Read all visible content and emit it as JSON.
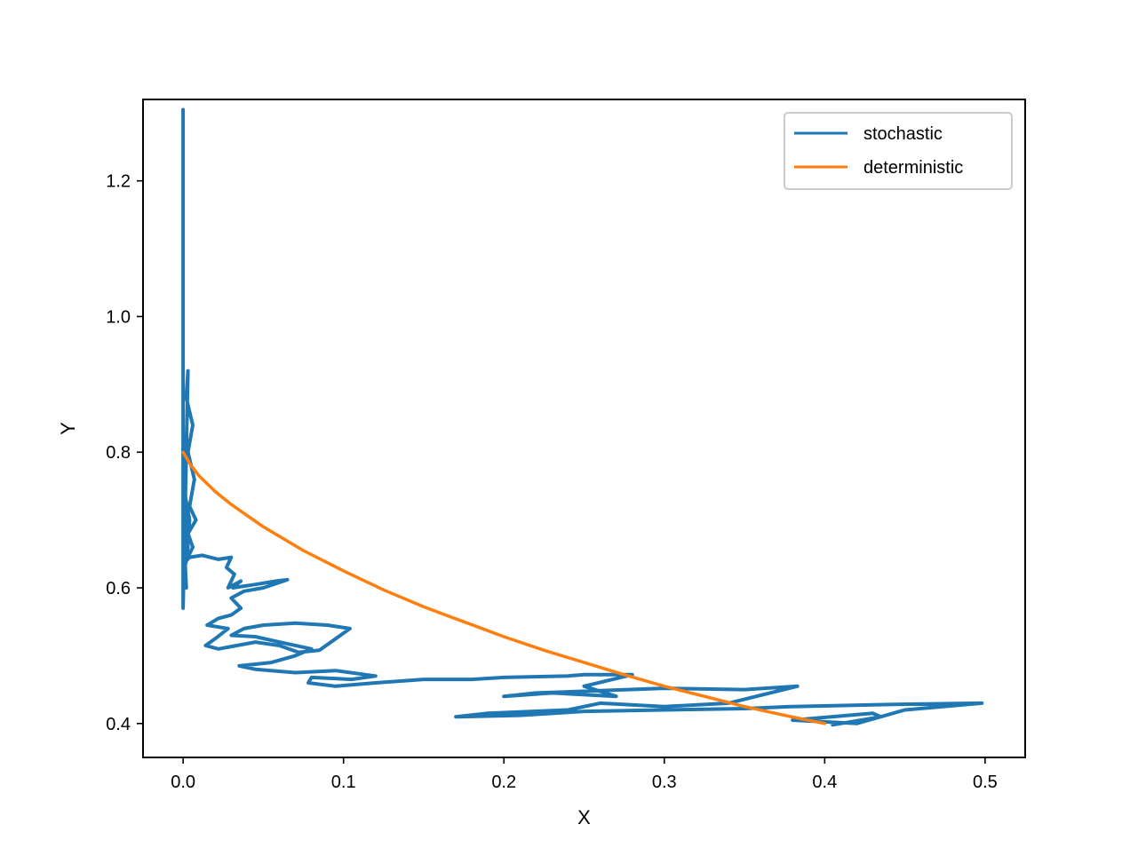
{
  "chart_data": {
    "type": "line",
    "title": "",
    "xlabel": "X",
    "ylabel": "Y",
    "xlim": [
      -0.025,
      0.525
    ],
    "ylim": [
      0.35,
      1.32
    ],
    "grid": false,
    "legend_position": "top-right",
    "xticks": [
      0.0,
      0.1,
      0.2,
      0.3,
      0.4,
      0.5
    ],
    "xtick_labels": [
      "0.0",
      "0.1",
      "0.2",
      "0.3",
      "0.4",
      "0.5"
    ],
    "yticks": [
      0.4,
      0.6,
      0.8,
      1.0,
      1.2
    ],
    "ytick_labels": [
      "0.4",
      "0.6",
      "0.8",
      "1.0",
      "1.2"
    ],
    "series": [
      {
        "name": "stochastic",
        "color": "#1f77b4",
        "x": [
          0.0,
          0.0,
          0.0,
          0.003,
          0.002,
          0.006,
          0.003,
          0.007,
          0.004,
          0.008,
          0.003,
          0.006,
          0.002,
          0.004,
          0.001,
          0.003,
          0.001,
          0.003,
          0.001,
          0.002,
          0.0,
          0.002,
          0.004,
          0.012,
          0.022,
          0.03,
          0.027,
          0.032,
          0.028,
          0.036,
          0.031,
          0.045,
          0.058,
          0.065,
          0.05,
          0.038,
          0.03,
          0.036,
          0.03,
          0.022,
          0.015,
          0.028,
          0.02,
          0.014,
          0.022,
          0.045,
          0.06,
          0.072,
          0.085,
          0.104,
          0.09,
          0.07,
          0.05,
          0.038,
          0.03,
          0.045,
          0.06,
          0.08,
          0.07,
          0.055,
          0.035,
          0.045,
          0.07,
          0.095,
          0.12,
          0.105,
          0.08,
          0.078,
          0.095,
          0.12,
          0.15,
          0.18,
          0.2,
          0.24,
          0.25,
          0.28,
          0.25,
          0.27,
          0.23,
          0.2,
          0.22,
          0.3,
          0.35,
          0.383,
          0.34,
          0.3,
          0.26,
          0.24,
          0.19,
          0.17,
          0.21,
          0.25,
          0.3,
          0.35,
          0.38,
          0.44,
          0.498,
          0.45,
          0.42,
          0.38,
          0.43,
          0.435,
          0.41,
          0.405
        ],
        "y": [
          0.57,
          1.305,
          0.57,
          0.92,
          0.88,
          0.84,
          0.8,
          0.76,
          0.72,
          0.7,
          0.68,
          0.66,
          0.64,
          0.7,
          0.74,
          0.66,
          0.63,
          0.71,
          0.65,
          0.6,
          0.62,
          0.64,
          0.645,
          0.648,
          0.642,
          0.645,
          0.63,
          0.62,
          0.6,
          0.61,
          0.6,
          0.605,
          0.61,
          0.612,
          0.6,
          0.595,
          0.585,
          0.57,
          0.56,
          0.555,
          0.545,
          0.54,
          0.525,
          0.515,
          0.51,
          0.52,
          0.515,
          0.505,
          0.508,
          0.54,
          0.545,
          0.548,
          0.545,
          0.54,
          0.53,
          0.528,
          0.52,
          0.51,
          0.5,
          0.49,
          0.485,
          0.48,
          0.475,
          0.478,
          0.47,
          0.465,
          0.468,
          0.46,
          0.455,
          0.46,
          0.465,
          0.465,
          0.468,
          0.47,
          0.472,
          0.472,
          0.455,
          0.44,
          0.445,
          0.44,
          0.445,
          0.452,
          0.45,
          0.455,
          0.43,
          0.425,
          0.43,
          0.42,
          0.415,
          0.41,
          0.412,
          0.418,
          0.42,
          0.422,
          0.425,
          0.428,
          0.43,
          0.42,
          0.4,
          0.405,
          0.415,
          0.41,
          0.4,
          0.398
        ]
      },
      {
        "name": "deterministic",
        "color": "#ff7f0e",
        "x": [
          0.0,
          0.005,
          0.01,
          0.02,
          0.03,
          0.05,
          0.075,
          0.1,
          0.125,
          0.15,
          0.175,
          0.2,
          0.225,
          0.25,
          0.275,
          0.3,
          0.325,
          0.35,
          0.375,
          0.4
        ],
        "y": [
          0.8,
          0.78,
          0.765,
          0.742,
          0.723,
          0.69,
          0.655,
          0.625,
          0.597,
          0.572,
          0.55,
          0.528,
          0.508,
          0.49,
          0.472,
          0.455,
          0.44,
          0.425,
          0.412,
          0.4
        ]
      }
    ]
  }
}
